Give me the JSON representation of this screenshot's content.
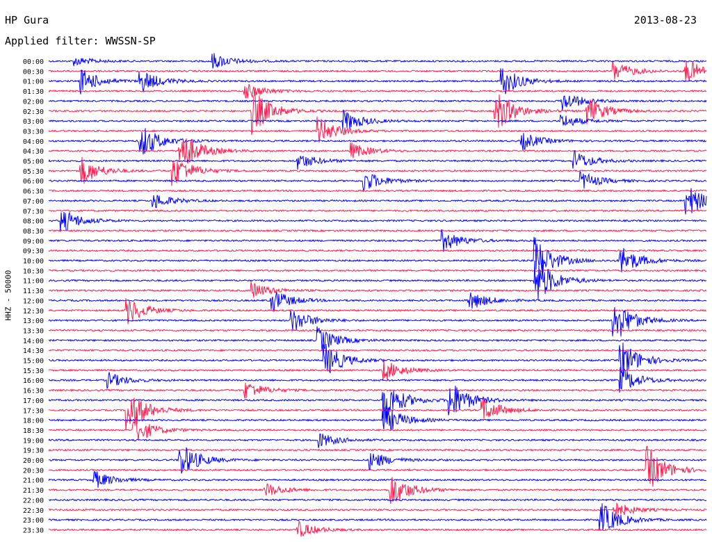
{
  "header": {
    "station": "HP Gura",
    "date": "2013-08-23",
    "filter": "Applied filter: WWSSN-SP"
  },
  "chart_data": {
    "type": "helicorder",
    "title": "HP Gura",
    "date": "2013-08-23",
    "filter": "WWSSN-SP",
    "ylabel": "HHZ - 50000",
    "row_interval_minutes": 30,
    "row_labels": [
      "00:00",
      "00:30",
      "01:00",
      "01:30",
      "02:00",
      "02:30",
      "03:00",
      "03:30",
      "04:00",
      "04:30",
      "05:00",
      "05:30",
      "06:00",
      "06:30",
      "07:00",
      "07:30",
      "08:00",
      "08:30",
      "09:00",
      "09:30",
      "10:00",
      "10:30",
      "11:00",
      "11:30",
      "12:00",
      "12:30",
      "13:00",
      "13:30",
      "14:00",
      "14:30",
      "15:00",
      "15:30",
      "16:00",
      "16:30",
      "17:00",
      "17:30",
      "18:00",
      "18:30",
      "19:00",
      "19:30",
      "20:00",
      "20:30",
      "21:00",
      "21:30",
      "22:00",
      "22:30",
      "23:00",
      "23:30"
    ],
    "colors": {
      "even": "#0000ff",
      "odd": "#ff1a4d"
    },
    "events": [
      {
        "row": 0,
        "t": 0.04,
        "amp": 0.5
      },
      {
        "row": 0,
        "t": 0.25,
        "amp": 0.9
      },
      {
        "row": 1,
        "t": 0.86,
        "amp": 1.1
      },
      {
        "row": 1,
        "t": 0.97,
        "amp": 1.3
      },
      {
        "row": 2,
        "t": 0.05,
        "amp": 1.4
      },
      {
        "row": 2,
        "t": 0.14,
        "amp": 1.3
      },
      {
        "row": 2,
        "t": 0.69,
        "amp": 1.7
      },
      {
        "row": 3,
        "t": 0.3,
        "amp": 0.9
      },
      {
        "row": 4,
        "t": 0.78,
        "amp": 1.2
      },
      {
        "row": 5,
        "t": 0.31,
        "amp": 2.6
      },
      {
        "row": 5,
        "t": 0.68,
        "amp": 2.4
      },
      {
        "row": 5,
        "t": 0.82,
        "amp": 1.5
      },
      {
        "row": 6,
        "t": 0.45,
        "amp": 1.2
      },
      {
        "row": 6,
        "t": 0.78,
        "amp": 0.8
      },
      {
        "row": 7,
        "t": 0.41,
        "amp": 1.6
      },
      {
        "row": 8,
        "t": 0.14,
        "amp": 2.0
      },
      {
        "row": 8,
        "t": 0.72,
        "amp": 1.0
      },
      {
        "row": 9,
        "t": 0.2,
        "amp": 2.5
      },
      {
        "row": 9,
        "t": 0.46,
        "amp": 0.9
      },
      {
        "row": 10,
        "t": 0.38,
        "amp": 0.9
      },
      {
        "row": 10,
        "t": 0.8,
        "amp": 1.1
      },
      {
        "row": 11,
        "t": 0.05,
        "amp": 1.6
      },
      {
        "row": 11,
        "t": 0.19,
        "amp": 1.8
      },
      {
        "row": 12,
        "t": 0.48,
        "amp": 1.2
      },
      {
        "row": 12,
        "t": 0.81,
        "amp": 1.0
      },
      {
        "row": 14,
        "t": 0.16,
        "amp": 0.9
      },
      {
        "row": 14,
        "t": 0.97,
        "amp": 1.9
      },
      {
        "row": 16,
        "t": 0.02,
        "amp": 1.4
      },
      {
        "row": 18,
        "t": 0.6,
        "amp": 1.2
      },
      {
        "row": 20,
        "t": 0.87,
        "amp": 1.7
      },
      {
        "row": 20,
        "t": 0.74,
        "amp": 2.6
      },
      {
        "row": 22,
        "t": 0.74,
        "amp": 2.8
      },
      {
        "row": 23,
        "t": 0.31,
        "amp": 0.9
      },
      {
        "row": 24,
        "t": 0.34,
        "amp": 1.3
      },
      {
        "row": 24,
        "t": 0.64,
        "amp": 1.1
      },
      {
        "row": 25,
        "t": 0.12,
        "amp": 1.5
      },
      {
        "row": 26,
        "t": 0.37,
        "amp": 1.4
      },
      {
        "row": 26,
        "t": 0.86,
        "amp": 2.6
      },
      {
        "row": 28,
        "t": 0.41,
        "amp": 1.5
      },
      {
        "row": 30,
        "t": 0.42,
        "amp": 1.9
      },
      {
        "row": 30,
        "t": 0.87,
        "amp": 2.3
      },
      {
        "row": 31,
        "t": 0.51,
        "amp": 1.2
      },
      {
        "row": 32,
        "t": 0.09,
        "amp": 0.9
      },
      {
        "row": 32,
        "t": 0.87,
        "amp": 1.5
      },
      {
        "row": 33,
        "t": 0.3,
        "amp": 1.0
      },
      {
        "row": 34,
        "t": 0.51,
        "amp": 2.4
      },
      {
        "row": 34,
        "t": 0.61,
        "amp": 2.3
      },
      {
        "row": 35,
        "t": 0.12,
        "amp": 2.6
      },
      {
        "row": 35,
        "t": 0.66,
        "amp": 1.4
      },
      {
        "row": 36,
        "t": 0.51,
        "amp": 1.7
      },
      {
        "row": 37,
        "t": 0.13,
        "amp": 1.6
      },
      {
        "row": 38,
        "t": 0.41,
        "amp": 0.9
      },
      {
        "row": 40,
        "t": 0.2,
        "amp": 2.0
      },
      {
        "row": 40,
        "t": 0.49,
        "amp": 1.0
      },
      {
        "row": 41,
        "t": 0.91,
        "amp": 2.6
      },
      {
        "row": 42,
        "t": 0.07,
        "amp": 1.0
      },
      {
        "row": 43,
        "t": 0.52,
        "amp": 2.0
      },
      {
        "row": 43,
        "t": 0.33,
        "amp": 0.8
      },
      {
        "row": 45,
        "t": 0.86,
        "amp": 0.9
      },
      {
        "row": 46,
        "t": 0.84,
        "amp": 1.9
      },
      {
        "row": 47,
        "t": 0.38,
        "amp": 0.9
      }
    ]
  }
}
